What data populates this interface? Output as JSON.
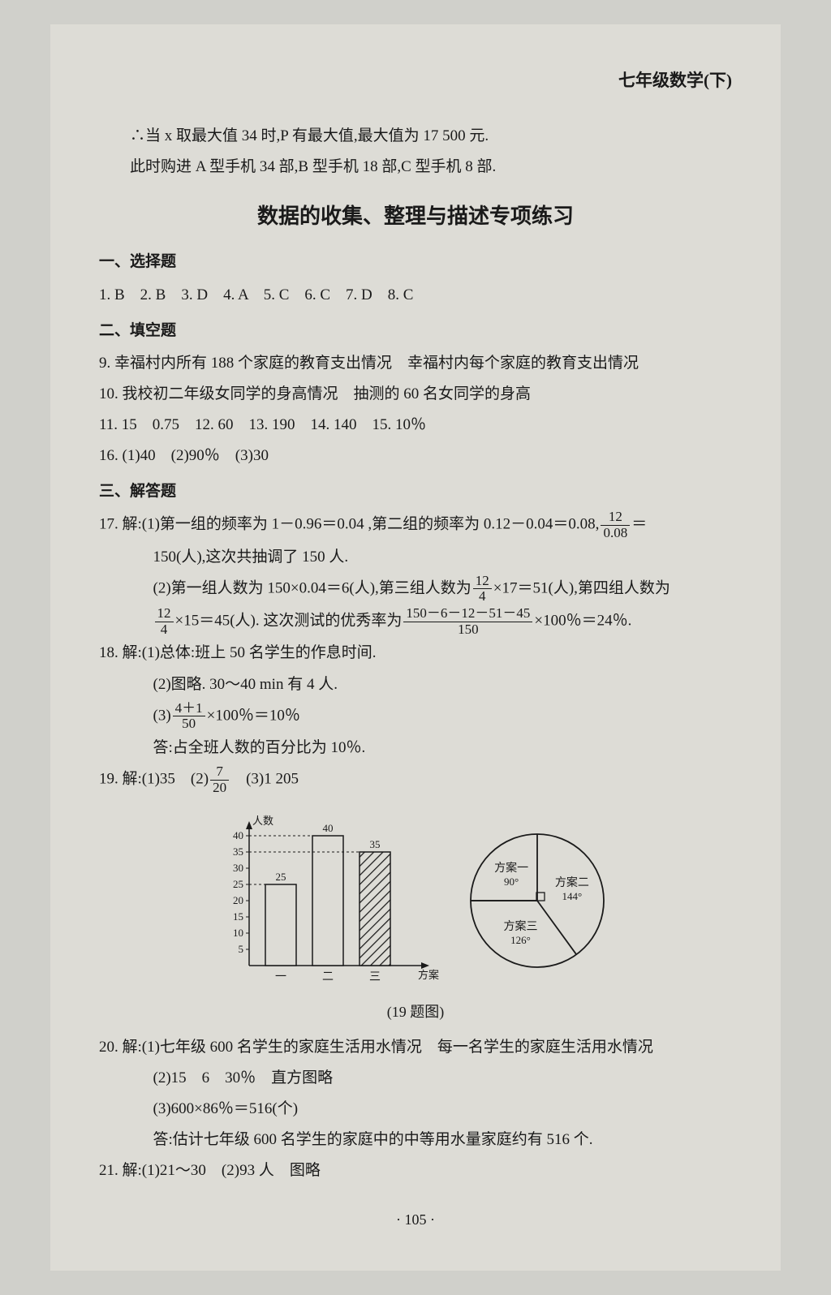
{
  "header": "七年级数学(下)",
  "intro_line1": "∴当 x 取最大值 34 时,P 有最大值,最大值为 17 500 元.",
  "intro_line2": "此时购进 A 型手机 34 部,B 型手机 18 部,C 型手机 8 部.",
  "title": "数据的收集、整理与描述专项练习",
  "sec1": "一、选择题",
  "mc": "1. B　2. B　3. D　4. A　5. C　6. C　7. D　8. C",
  "sec2": "二、填空题",
  "fb9": "9. 幸福村内所有 188 个家庭的教育支出情况　幸福村内每个家庭的教育支出情况",
  "fb10": "10. 我校初二年级女同学的身高情况　抽测的 60 名女同学的身高",
  "fb11": "11. 15　0.75　12. 60　13. 190　14. 140　15. 10％",
  "fb16": "16. (1)40　(2)90％　(3)30",
  "sec3": "三、解答题",
  "q17_1a": "17. 解:(1)第一组的频率为 1－0.96＝0.04 ,第二组的频率为 0.12－0.04＝0.08,",
  "q17_1b": "150(人),这次共抽调了 150 人.",
  "q17_2a": "(2)第一组人数为 150×0.04＝6(人),第三组人数为",
  "q17_2b": "×17＝51(人),第四组人数为",
  "q17_3a": "×15＝45(人). 这次测试的优秀率为",
  "q17_3b": "×100％＝24％.",
  "q18_1": "18. 解:(1)总体:班上 50 名学生的作息时间.",
  "q18_2": "(2)图略. 30～40 min 有 4 人.",
  "q18_3a": "(3)",
  "q18_3b": "×100％＝10％",
  "q18_4": "答:占全班人数的百分比为 10％.",
  "q19_1": "19. 解:(1)35　(2)",
  "q19_1b": "　(3)1 205",
  "fig_caption": "(19 题图)",
  "q20_1": "20. 解:(1)七年级 600 名学生的家庭生活用水情况　每一名学生的家庭生活用水情况",
  "q20_2": "(2)15　6　30％　直方图略",
  "q20_3": "(3)600×86％＝516(个)",
  "q20_4": "答:估计七年级 600 名学生的家庭中的中等用水量家庭约有 516 个.",
  "q21": "21. 解:(1)21～30　(2)93 人　图略",
  "page_num": "· 105 ·",
  "frac": {
    "f12_008": {
      "n": "12",
      "d": "0.08"
    },
    "f12_4a": {
      "n": "12",
      "d": "4"
    },
    "f12_4b": {
      "n": "12",
      "d": "4"
    },
    "fbig": {
      "n": "150－6－12－51－45",
      "d": "150"
    },
    "f41_50": {
      "n": "4＋1",
      "d": "50"
    },
    "f7_20": {
      "n": "7",
      "d": "20"
    }
  },
  "bar_chart": {
    "ylabel": "人数",
    "xlabel": "方案",
    "yticks": [
      "5",
      "10",
      "15",
      "20",
      "25",
      "30",
      "35",
      "40"
    ],
    "categories": [
      "一",
      "二",
      "三"
    ],
    "values": [
      25,
      40,
      35
    ],
    "value_labels": [
      "25",
      "40",
      "35"
    ],
    "bar_fill": [
      "#dddcd6",
      "#dddcd6",
      "hatch"
    ],
    "axis_color": "#1a1a1a",
    "font_size": 13
  },
  "pie_chart": {
    "slices": [
      {
        "label": "方案一",
        "sub": "90°",
        "angle": 90
      },
      {
        "label": "方案二",
        "sub": "144°",
        "angle": 144
      },
      {
        "label": "方案三",
        "sub": "126°",
        "angle": 126
      }
    ],
    "stroke": "#1a1a1a",
    "font_size": 14
  }
}
